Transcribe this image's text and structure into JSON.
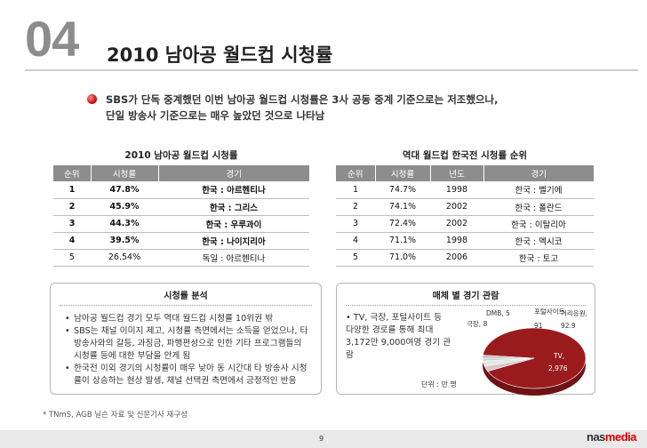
{
  "header": {
    "section_number": "04",
    "title": "2010 남아공 월드컵 시청률"
  },
  "summary": {
    "line1": "SBS가 단독 중계했던 이번 남아공 월드컵 시청률은 3사 공동 중계 기준으로는 저조했으나,",
    "line2": "단일 방송사 기준으로는 매우 높았던 것으로 나타남"
  },
  "table_2010": {
    "title": "2010 남아공 월드컵 시청률",
    "headers": [
      "순위",
      "시청률",
      "경기"
    ],
    "rows": [
      [
        "1",
        "47.8%",
        "한국 : 아르헨티나"
      ],
      [
        "2",
        "45.9%",
        "한국 : 그리스"
      ],
      [
        "3",
        "44.3%",
        "한국 : 우루과이"
      ],
      [
        "4",
        "39.5%",
        "한국 : 나이지리아"
      ],
      [
        "5",
        "26.54%",
        "독일 : 아르헨티나"
      ]
    ]
  },
  "table_history": {
    "title": "역대 월드컵 한국전 시청률 순위",
    "headers": [
      "순위",
      "시청률",
      "년도",
      "경기"
    ],
    "rows": [
      [
        "1",
        "74.7%",
        "1998",
        "한국 : 벨기에"
      ],
      [
        "2",
        "74.1%",
        "2002",
        "한국 : 폴란드"
      ],
      [
        "3",
        "72.4%",
        "2002",
        "한국 : 이탈리아"
      ],
      [
        "4",
        "71.1%",
        "1998",
        "한국 : 멕시코"
      ],
      [
        "5",
        "71.0%",
        "2006",
        "한국 : 토고"
      ]
    ]
  },
  "analysis": {
    "title": "시청률 분석",
    "bullets": [
      "남아공 월드컵 경기 모두 역대 월드컵 시청률 10위권 밖",
      "SBS는 채널 이미지 제고, 시청률 측면에서는 소득을 얻었으나, 타 방송사와의 갈등, 과징금, 파행편성으로 인한 기타 프로그램들의 시청률 등에 대한 부담을 안게 됨",
      "한국전 이외 경기의 시청률이 매우 낮아 동 시간대 타 방송사 시청률이 상승하는 현상 발생, 채널 선택권 측면에서 긍정적인 반응"
    ]
  },
  "media": {
    "title": "매체 별 경기 관람",
    "text": "TV, 극장, 포털사이트 등 다양한 경로를 통해 최대 3,172만 9,000여명 경기 관람",
    "unit": "단위 : 만 명"
  },
  "chart_data": {
    "type": "pie",
    "title": "",
    "slices": [
      {
        "label": "TV,",
        "value": 2976,
        "value_label": "2,976",
        "color": "#9a1b1e"
      },
      {
        "label": "거리응원,",
        "value": 92.9,
        "value_label": "92.9",
        "color": "#d8c8c8"
      },
      {
        "label": "포털사이트,",
        "value": 91,
        "value_label": "91",
        "color": "#e6e6e6"
      },
      {
        "label": "DMB,",
        "value": 5,
        "value_label": "5",
        "color": "#cfcfcf"
      },
      {
        "label": "극장,",
        "value": 8,
        "value_label": "8",
        "color": "#bdbdbd"
      }
    ]
  },
  "footnote": "* TNmS, AGB 닐슨 자료 및 신문기사 재구성",
  "footer": {
    "page_number": "9",
    "brand_main": "nas",
    "brand_accent": "media"
  }
}
